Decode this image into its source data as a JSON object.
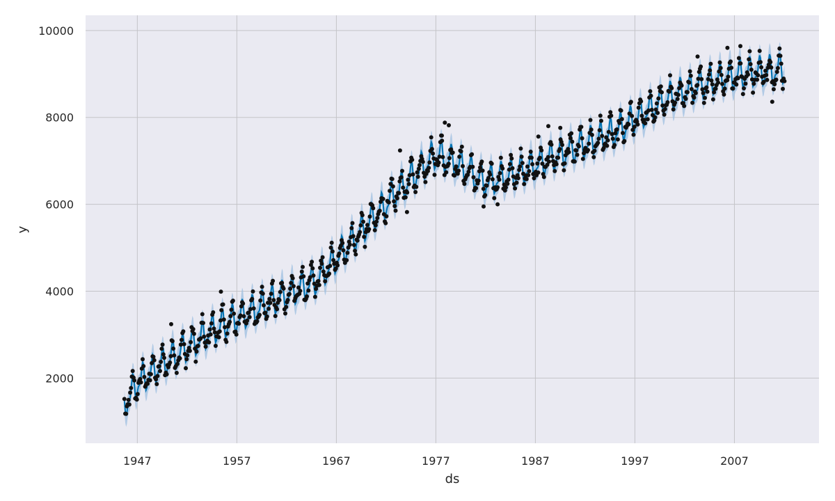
{
  "chart_data": {
    "type": "line",
    "title": "",
    "xlabel": "ds",
    "ylabel": "y",
    "xlim": [
      1941.8,
      2015.5
    ],
    "ylim": [
      500,
      10350
    ],
    "x_ticks": [
      1947,
      1957,
      1967,
      1977,
      1987,
      1997,
      2007
    ],
    "y_ticks": [
      2000,
      4000,
      6000,
      8000,
      10000
    ],
    "grid": true,
    "legend": "none",
    "colors": {
      "plot_background": "#eaeaf2",
      "grid": "#c4c4c8",
      "forecast_line": "#0072b2",
      "uncertainty_band": "#9dbfe0",
      "observed_points": "#111111"
    },
    "trend_knots": {
      "x": [
        1945.7,
        1947,
        1950,
        1955,
        1960,
        1965,
        1970,
        1973,
        1977,
        1979,
        1982,
        1985,
        1990,
        1995,
        2000,
        2005,
        2008,
        2012.1
      ],
      "y": [
        1380,
        1880,
        2400,
        3150,
        3700,
        4250,
        5500,
        6250,
        7150,
        6950,
        6500,
        6700,
        7200,
        7650,
        8400,
        8850,
        9000,
        9100
      ]
    },
    "seasonal_amplitude": 380,
    "uncertainty_halfwidth": 260,
    "observed": {
      "start": 1945.7,
      "end": 2012.1,
      "anomalies": [
        {
          "x": 1977.9,
          "y": 7880
        },
        {
          "x": 1978.3,
          "y": 7820
        },
        {
          "x": 1977.6,
          "y": 7580
        },
        {
          "x": 1981.8,
          "y": 5950
        },
        {
          "x": 1983.2,
          "y": 6000
        },
        {
          "x": 1974.1,
          "y": 5820
        },
        {
          "x": 1973.4,
          "y": 7240
        },
        {
          "x": 1987.3,
          "y": 7560
        },
        {
          "x": 1988.3,
          "y": 7800
        },
        {
          "x": 1989.5,
          "y": 7760
        },
        {
          "x": 2003.3,
          "y": 9400
        },
        {
          "x": 2006.3,
          "y": 9600
        },
        {
          "x": 2007.6,
          "y": 9640
        },
        {
          "x": 2010.8,
          "y": 8360
        },
        {
          "x": 1950.4,
          "y": 3240
        },
        {
          "x": 1955.4,
          "y": 3990
        }
      ]
    }
  }
}
